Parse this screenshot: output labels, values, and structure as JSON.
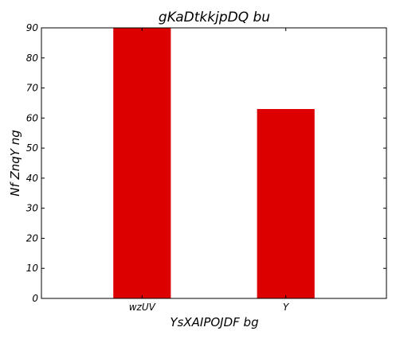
{
  "chart_data": {
    "type": "bar",
    "title": "gKaDtkkjpDQ bu",
    "xlabel": "YsXAIPOJDF  bg",
    "ylabel": "Nf ZnqY ng",
    "categories": [
      "wzUV",
      "Y"
    ],
    "values": [
      90,
      63
    ],
    "ylim": [
      0,
      90
    ],
    "yticks": [
      0,
      10,
      20,
      30,
      40,
      50,
      60,
      70,
      80,
      90
    ],
    "bar_color": "#dd0000",
    "grid": false,
    "legend": "none"
  }
}
